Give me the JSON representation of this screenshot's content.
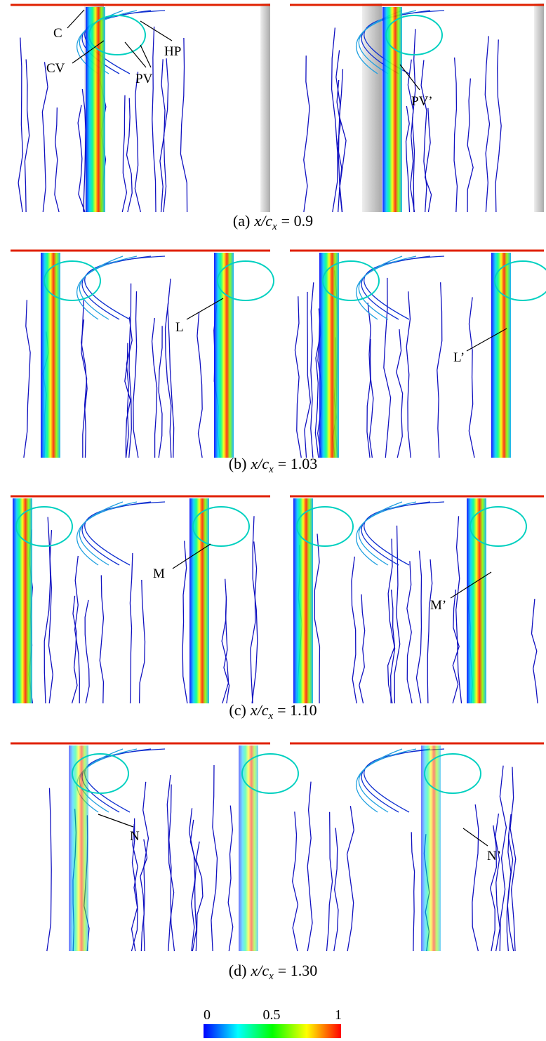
{
  "panels": [
    {
      "caption": {
        "label": "(a)",
        "variable": "x/c",
        "subscript": "x",
        "equals": "= 0.9"
      },
      "left_annotations": [
        "C",
        "CV",
        "PV",
        "HP"
      ],
      "right_annotations": [
        "PV’"
      ]
    },
    {
      "caption": {
        "label": "(b)",
        "variable": "x/c",
        "subscript": "x",
        "equals": "= 1.03"
      },
      "left_annotations": [
        "L"
      ],
      "right_annotations": [
        "L’"
      ]
    },
    {
      "caption": {
        "label": "(c)",
        "variable": "x/c",
        "subscript": "x",
        "equals": "= 1.10"
      },
      "left_annotations": [
        "M"
      ],
      "right_annotations": [
        "M’"
      ]
    },
    {
      "caption": {
        "label": "(d)",
        "variable": "x/c",
        "subscript": "x",
        "equals": "= 1.30"
      },
      "left_annotations": [
        "N"
      ],
      "right_annotations": [
        "N’"
      ]
    }
  ],
  "colorbar": {
    "tick_labels": [
      "0",
      "0.5",
      "1"
    ]
  }
}
